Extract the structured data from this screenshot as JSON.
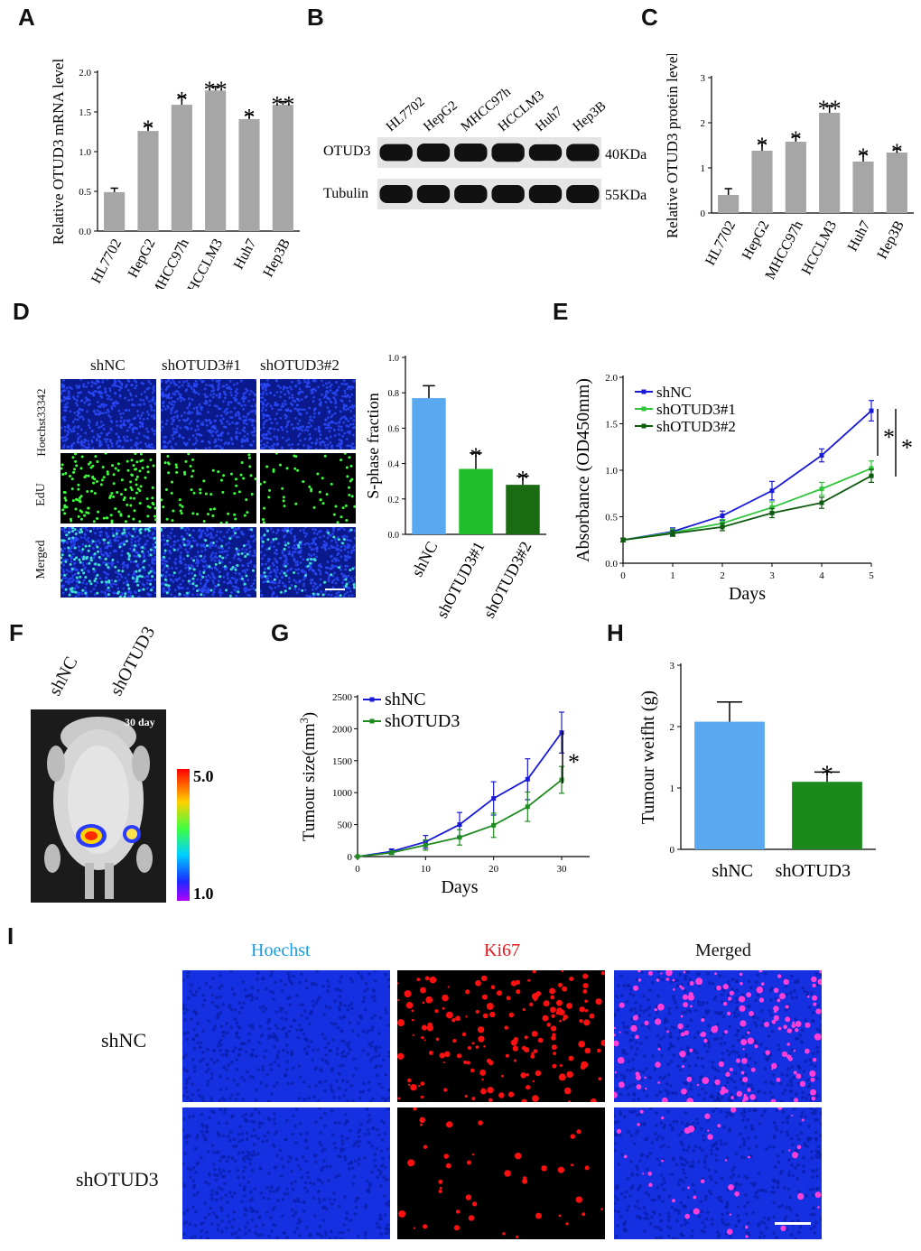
{
  "panels": {
    "A": {
      "letter": "A"
    },
    "B": {
      "letter": "B"
    },
    "C": {
      "letter": "C"
    },
    "D": {
      "letter": "D"
    },
    "E": {
      "letter": "E"
    },
    "F": {
      "letter": "F"
    },
    "G": {
      "letter": "G"
    },
    "H": {
      "letter": "H"
    },
    "I": {
      "letter": "I"
    }
  },
  "chart_data": [
    {
      "panel": "A",
      "type": "bar",
      "categories": [
        "HL7702",
        "HepG2",
        "MHCC97h",
        "HCCLM3",
        "Huh7",
        "Hep3B"
      ],
      "values": [
        0.49,
        1.26,
        1.59,
        1.77,
        1.41,
        1.59
      ],
      "errors": [
        0.05,
        0.07,
        0.1,
        0.05,
        0.06,
        0.04
      ],
      "significance": [
        "",
        "*",
        "*",
        "**",
        "*",
        "**"
      ],
      "ylabel": "Relative OTUD3 mRNA level",
      "ylim": [
        0,
        2.0
      ],
      "yticks": [
        "0.0",
        "0.5",
        "1.0",
        "1.5",
        "2.0"
      ],
      "color": "#a6a6a6"
    },
    {
      "panel": "C",
      "type": "bar",
      "categories": [
        "HL7702",
        "HepG2",
        "MHCC97h",
        "HCCLM3",
        "Huh7",
        "Hep3B"
      ],
      "values": [
        0.4,
        1.38,
        1.58,
        2.22,
        1.14,
        1.34
      ],
      "errors": [
        0.14,
        0.18,
        0.12,
        0.16,
        0.18,
        0.08
      ],
      "significance": [
        "",
        "*",
        "*",
        "**",
        "*",
        "*"
      ],
      "ylabel": "Relative OTUD3 protein level",
      "ylim": [
        0,
        3
      ],
      "yticks": [
        "0",
        "1",
        "2",
        "3"
      ],
      "color": "#a6a6a6"
    },
    {
      "panel": "D",
      "type": "bar",
      "categories": [
        "shNC",
        "shOTUD3#1",
        "shOTUD3#2"
      ],
      "values": [
        0.77,
        0.37,
        0.28
      ],
      "errors": [
        0.07,
        0.09,
        0.05
      ],
      "significance": [
        "",
        "*",
        "*"
      ],
      "colors": [
        "#5aa9f0",
        "#1fbf2b",
        "#1a6b12"
      ],
      "ylabel": "S-phase fraction",
      "ylim": [
        0,
        1.0
      ],
      "yticks": [
        "0.0",
        "0.2",
        "0.4",
        "0.6",
        "0.8",
        "1.0"
      ]
    },
    {
      "panel": "E",
      "type": "line",
      "x": [
        0,
        1,
        2,
        3,
        4,
        5
      ],
      "xticks": [
        "0",
        "1",
        "2",
        "3",
        "4",
        "5"
      ],
      "series": [
        {
          "name": "shNC",
          "values": [
            0.25,
            0.34,
            0.51,
            0.78,
            1.16,
            1.64
          ],
          "errors": [
            0.02,
            0.04,
            0.05,
            0.1,
            0.07,
            0.11
          ],
          "color": "#1a1ad6"
        },
        {
          "name": "shOTUD3#1",
          "values": [
            0.25,
            0.33,
            0.43,
            0.6,
            0.8,
            1.02
          ],
          "errors": [
            0.02,
            0.04,
            0.04,
            0.06,
            0.07,
            0.08
          ],
          "color": "#2fc63b"
        },
        {
          "name": "shOTUD3#2",
          "values": [
            0.25,
            0.32,
            0.39,
            0.54,
            0.65,
            0.94
          ],
          "errors": [
            0.02,
            0.03,
            0.04,
            0.05,
            0.06,
            0.07
          ],
          "color": "#0e5a0e"
        }
      ],
      "xlabel": "Days",
      "ylabel": "Absorbance (OD450mm)",
      "ylim": [
        0,
        2.0
      ],
      "yticks": [
        "0.0",
        "0.5",
        "1.0",
        "1.5",
        "2.0"
      ],
      "significance": [
        "*",
        "*"
      ],
      "legend": "top-left"
    },
    {
      "panel": "G",
      "type": "line",
      "x": [
        0,
        5,
        10,
        15,
        20,
        25,
        30
      ],
      "xticks": [
        "0",
        "10",
        "20",
        "30"
      ],
      "series": [
        {
          "name": "shNC",
          "values": [
            0,
            80,
            230,
            500,
            910,
            1210,
            1940
          ],
          "errors": [
            0,
            40,
            100,
            190,
            260,
            320,
            320
          ],
          "color": "#1a1ad6"
        },
        {
          "name": "shOTUD3",
          "values": [
            0,
            60,
            180,
            300,
            490,
            780,
            1200
          ],
          "errors": [
            0,
            30,
            80,
            120,
            190,
            230,
            210
          ],
          "color": "#1f8a1f"
        }
      ],
      "xlabel": "Days",
      "ylabel": "Tumour size(mm",
      "ylabel_sup": "3",
      "ylabel_end": ")",
      "ylim": [
        0,
        2500
      ],
      "yticks": [
        "0",
        "500",
        "1000",
        "1500",
        "2000",
        "2500"
      ],
      "significance": [
        "*"
      ],
      "legend": "top-left"
    },
    {
      "panel": "H",
      "type": "bar",
      "categories": [
        "shNC",
        "shOTUD3"
      ],
      "values": [
        2.08,
        1.1
      ],
      "errors": [
        0.32,
        0.16
      ],
      "significance": [
        "",
        "*"
      ],
      "colors": [
        "#5aa9f0",
        "#1b8a1b"
      ],
      "ylabel": "Tumour weifht (g)",
      "ylim": [
        0,
        3
      ],
      "yticks": [
        "0",
        "1",
        "2",
        "3"
      ]
    }
  ],
  "western_blot": {
    "lanes": [
      "HL7702",
      "HepG2",
      "MHCC97h",
      "HCCLM3",
      "Huh7",
      "Hep3B"
    ],
    "rows": [
      {
        "name": "OTUD3",
        "size": "40KDa"
      },
      {
        "name": "Tubulin",
        "size": "55KDa"
      }
    ]
  },
  "edu_panel": {
    "columns": [
      "shNC",
      "shOTUD3#1",
      "shOTUD3#2"
    ],
    "rows": [
      "Hoechst33342",
      "EdU",
      "Merged"
    ]
  },
  "mouse_panel": {
    "groups": [
      "shNC",
      "shOTUD3"
    ],
    "day_label": "30 day",
    "scale_max": "5.0",
    "scale_min": "1.0"
  },
  "ihc_panel": {
    "columns": [
      "Hoechst",
      "Ki67",
      "Merged"
    ],
    "column_colors": [
      "#1a9be0",
      "#e8161b",
      "#111111"
    ],
    "rows": [
      "shNC",
      "shOTUD3"
    ]
  }
}
